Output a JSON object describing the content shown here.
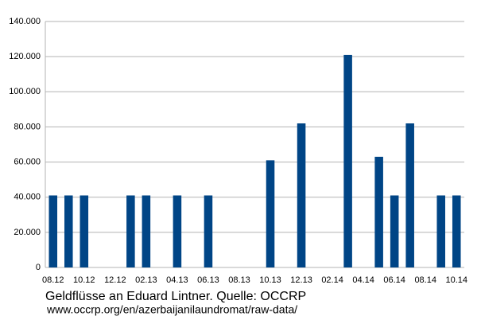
{
  "chart_data": {
    "type": "bar",
    "title": "Geldflüsse an Eduard Lintner. Quelle: OCCRP",
    "subtitle": "www.occrp.org/en/azerbaijanilaundromat/raw-data/",
    "categories": [
      "08.12",
      null,
      "10.12",
      null,
      "12.12",
      null,
      "02.13",
      null,
      "04.13",
      null,
      "06.13",
      null,
      "08.13",
      null,
      "10.13",
      null,
      "12.13",
      null,
      "02.14",
      null,
      "04.14",
      null,
      "06.14",
      null,
      "08.14",
      null,
      "10.14"
    ],
    "values": [
      41000,
      41000,
      41000,
      0,
      0,
      41000,
      41000,
      0,
      41000,
      0,
      41000,
      0,
      0,
      0,
      61000,
      0,
      82000,
      0,
      0,
      121000,
      0,
      63000,
      41000,
      82000,
      0,
      41000,
      41000
    ],
    "color": "#004586",
    "ylim": [
      0,
      140000
    ],
    "yticks": [
      0,
      {
        "value": 20000,
        "label": "20.000"
      },
      {
        "value": 40000,
        "label": "40.000"
      },
      {
        "value": 60000,
        "label": "60.000"
      },
      {
        "value": 80000,
        "label": "80.000"
      },
      {
        "value": 100000,
        "label": "100.000"
      },
      {
        "value": 120000,
        "label": "120.000"
      },
      {
        "value": 140000,
        "label": "140.000"
      }
    ],
    "grid": true
  }
}
